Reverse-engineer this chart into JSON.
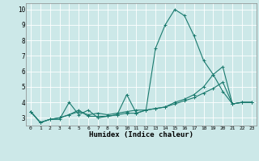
{
  "xlabel": "Humidex (Indice chaleur)",
  "ylabel": "",
  "bg_color": "#cce8e8",
  "grid_color": "#ffffff",
  "line_color": "#1a7a6e",
  "xlim": [
    -0.5,
    23.5
  ],
  "ylim": [
    2.5,
    10.4
  ],
  "xticks": [
    0,
    1,
    2,
    3,
    4,
    5,
    6,
    7,
    8,
    9,
    10,
    11,
    12,
    13,
    14,
    15,
    16,
    17,
    18,
    19,
    20,
    21,
    22,
    23
  ],
  "yticks": [
    3,
    4,
    5,
    6,
    7,
    8,
    9,
    10
  ],
  "series": [
    [
      3.4,
      2.7,
      2.9,
      2.9,
      4.0,
      3.2,
      3.5,
      3.0,
      3.1,
      3.2,
      4.5,
      3.3,
      3.5,
      7.5,
      9.0,
      10.0,
      9.6,
      8.3,
      6.7,
      5.8,
      4.7,
      3.9,
      4.0,
      4.0
    ],
    [
      3.4,
      2.7,
      2.9,
      3.0,
      3.2,
      3.5,
      3.1,
      3.1,
      3.1,
      3.2,
      3.3,
      3.3,
      3.5,
      3.6,
      3.7,
      4.0,
      4.2,
      4.5,
      5.0,
      5.8,
      6.3,
      3.9,
      4.0,
      4.0
    ],
    [
      3.4,
      2.7,
      2.9,
      3.0,
      3.2,
      3.4,
      3.2,
      3.3,
      3.2,
      3.3,
      3.4,
      3.5,
      3.5,
      3.6,
      3.7,
      3.9,
      4.1,
      4.3,
      4.6,
      4.9,
      5.3,
      3.9,
      4.0,
      4.0
    ]
  ]
}
